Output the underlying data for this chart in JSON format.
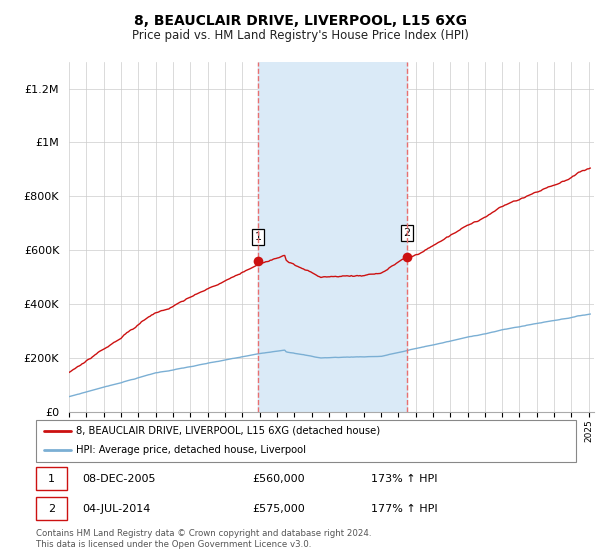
{
  "title": "8, BEAUCLAIR DRIVE, LIVERPOOL, L15 6XG",
  "subtitle": "Price paid vs. HM Land Registry's House Price Index (HPI)",
  "title_fontsize": 10,
  "subtitle_fontsize": 8.5,
  "ylim": [
    0,
    1300000
  ],
  "yticks": [
    0,
    200000,
    400000,
    600000,
    800000,
    1000000,
    1200000
  ],
  "ytick_labels": [
    "£0",
    "£200K",
    "£400K",
    "£600K",
    "£800K",
    "£1M",
    "£1.2M"
  ],
  "sale1_year": 2005.92,
  "sale1_price": 560000,
  "sale2_year": 2014.5,
  "sale2_price": 575000,
  "hpi_line_color": "#7bafd4",
  "price_line_color": "#cc1111",
  "shaded_region_color": "#daeaf7",
  "vline_color": "#e87070",
  "legend_label1": "8, BEAUCLAIR DRIVE, LIVERPOOL, L15 6XG (detached house)",
  "legend_label2": "HPI: Average price, detached house, Liverpool",
  "footnote": "Contains HM Land Registry data © Crown copyright and database right 2024.\nThis data is licensed under the Open Government Licence v3.0."
}
